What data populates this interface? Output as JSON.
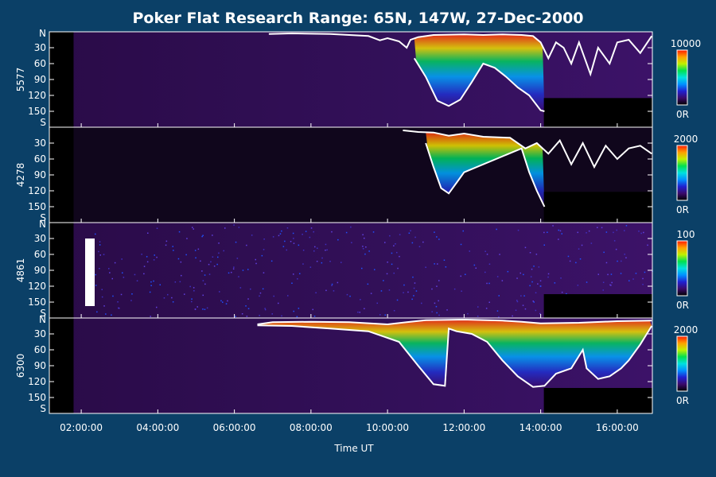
{
  "chart_data": {
    "type": "heatmap",
    "title": "Poker Flat Research Range: 65N, 147W, 27-Dec-2000",
    "xlabel": "Time UT",
    "x_ticks": [
      "02:00:00",
      "04:00:00",
      "06:00:00",
      "08:00:00",
      "10:00:00",
      "12:00:00",
      "14:00:00",
      "16:00:00"
    ],
    "xlim": [
      "01:10:00",
      "16:55:00"
    ],
    "colormap": [
      "#000000",
      "#3a0a6a",
      "#2020d0",
      "#0090ff",
      "#00e0e0",
      "#00e050",
      "#c0f000",
      "#ffa000",
      "#ff1a00"
    ],
    "panels": [
      {
        "ylabel": "5577",
        "y_ticks": [
          "N",
          "30",
          "60",
          "90",
          "120",
          "150",
          "S"
        ],
        "colorbar": {
          "max": "10000",
          "min": "0R"
        },
        "boundary_upper": [
          [
            6.9,
            4
          ],
          [
            7.5,
            3
          ],
          [
            8.5,
            4
          ],
          [
            9.5,
            8
          ],
          [
            9.8,
            16
          ],
          [
            10.0,
            12
          ],
          [
            10.3,
            18
          ],
          [
            10.5,
            30
          ],
          [
            10.6,
            15
          ],
          [
            10.8,
            10
          ],
          [
            11.2,
            6
          ],
          [
            12.0,
            5
          ],
          [
            12.5,
            6
          ],
          [
            13.0,
            5
          ],
          [
            13.5,
            6
          ],
          [
            13.8,
            8
          ],
          [
            14.0,
            20
          ],
          [
            14.2,
            50
          ],
          [
            14.4,
            20
          ],
          [
            14.6,
            30
          ],
          [
            14.8,
            60
          ],
          [
            15.0,
            20
          ],
          [
            15.3,
            80
          ],
          [
            15.5,
            30
          ],
          [
            15.8,
            60
          ],
          [
            16.0,
            20
          ],
          [
            16.3,
            15
          ],
          [
            16.6,
            40
          ],
          [
            16.9,
            8
          ]
        ],
        "boundary_lower": [
          [
            10.7,
            50
          ],
          [
            11.0,
            85
          ],
          [
            11.3,
            130
          ],
          [
            11.6,
            140
          ],
          [
            11.9,
            128
          ],
          [
            12.2,
            95
          ],
          [
            12.5,
            60
          ],
          [
            12.8,
            68
          ],
          [
            13.1,
            85
          ],
          [
            13.4,
            105
          ],
          [
            13.7,
            120
          ],
          [
            14.0,
            148
          ],
          [
            14.1,
            150
          ]
        ],
        "data_gap": {
          "x_from": "14:05:00",
          "x_to": "16:55:00",
          "y_from": 125,
          "y_to": 180
        }
      },
      {
        "ylabel": "4278",
        "y_ticks": [
          "30",
          "60",
          "90",
          "120",
          "150",
          "S"
        ],
        "colorbar": {
          "max": "2000",
          "min": "0R"
        },
        "boundary_upper": [
          [
            10.4,
            6
          ],
          [
            10.8,
            9
          ],
          [
            11.2,
            10
          ],
          [
            11.6,
            16
          ],
          [
            12.0,
            12
          ],
          [
            12.5,
            18
          ],
          [
            13.2,
            20
          ],
          [
            13.6,
            40
          ],
          [
            13.9,
            30
          ],
          [
            14.2,
            50
          ],
          [
            14.5,
            25
          ],
          [
            14.8,
            70
          ],
          [
            15.1,
            30
          ],
          [
            15.4,
            75
          ],
          [
            15.7,
            35
          ],
          [
            16.0,
            60
          ],
          [
            16.3,
            40
          ],
          [
            16.6,
            35
          ],
          [
            16.9,
            50
          ]
        ],
        "boundary_lower": [
          [
            11.0,
            30
          ],
          [
            11.2,
            75
          ],
          [
            11.4,
            115
          ],
          [
            11.6,
            125
          ],
          [
            11.8,
            105
          ],
          [
            12.0,
            85
          ],
          [
            13.5,
            40
          ],
          [
            13.7,
            85
          ],
          [
            13.9,
            120
          ],
          [
            14.1,
            150
          ]
        ],
        "data_gap": {
          "x_from": "14:05:00",
          "x_to": "16:55:00",
          "y_from": 122,
          "y_to": 180
        }
      },
      {
        "ylabel": "4861",
        "y_ticks": [
          "N",
          "30",
          "60",
          "90",
          "120",
          "150",
          "S"
        ],
        "colorbar": {
          "max": "100",
          "min": "0R"
        },
        "data_gap": {
          "x_from": "14:05:00",
          "x_to": "16:55:00",
          "y_from": 135,
          "y_to": 180
        }
      },
      {
        "ylabel": "6300",
        "y_ticks": [
          "N",
          "30",
          "60",
          "90",
          "120",
          "150",
          "S"
        ],
        "colorbar": {
          "max": "2000",
          "min": "0R"
        },
        "boundary_upper": [
          [
            6.6,
            12
          ],
          [
            7.0,
            8
          ],
          [
            8.0,
            7
          ],
          [
            9.0,
            8
          ],
          [
            10.0,
            12
          ],
          [
            10.5,
            8
          ],
          [
            11.0,
            4
          ],
          [
            12.0,
            3
          ],
          [
            13.0,
            5
          ],
          [
            13.5,
            7
          ],
          [
            14.0,
            10
          ],
          [
            15.0,
            9
          ],
          [
            16.0,
            6
          ],
          [
            16.9,
            5
          ]
        ],
        "boundary_lower": [
          [
            6.6,
            14
          ],
          [
            7.5,
            15
          ],
          [
            8.5,
            20
          ],
          [
            9.5,
            25
          ],
          [
            10.3,
            45
          ],
          [
            10.8,
            90
          ],
          [
            11.2,
            125
          ],
          [
            11.5,
            128
          ],
          [
            11.6,
            20
          ],
          [
            11.8,
            25
          ],
          [
            12.2,
            30
          ],
          [
            12.6,
            45
          ],
          [
            13.0,
            80
          ],
          [
            13.4,
            110
          ],
          [
            13.8,
            130
          ],
          [
            14.1,
            128
          ],
          [
            14.4,
            105
          ],
          [
            14.8,
            95
          ],
          [
            15.1,
            60
          ],
          [
            15.2,
            95
          ],
          [
            15.5,
            115
          ],
          [
            15.8,
            110
          ],
          [
            16.1,
            95
          ],
          [
            16.3,
            80
          ],
          [
            16.6,
            50
          ],
          [
            16.9,
            15
          ]
        ],
        "data_gap": {
          "x_from": "14:05:00",
          "x_to": "16:55:00",
          "y_from": 132,
          "y_to": 180
        }
      }
    ]
  }
}
